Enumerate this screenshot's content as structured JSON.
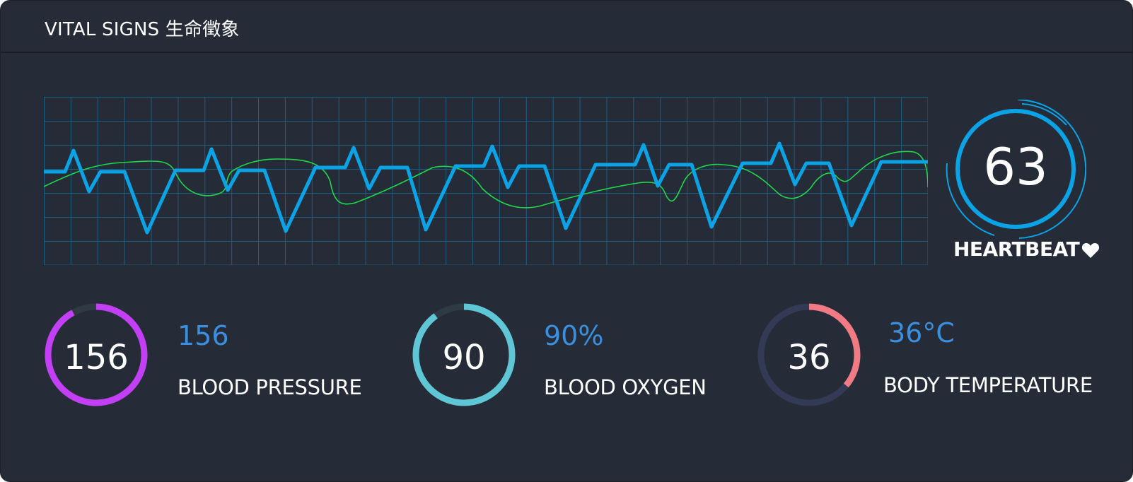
{
  "header": {
    "title": "VITAL SIGNS  生命徵象"
  },
  "heartbeat": {
    "value": "63",
    "label": "HEARTBEAT",
    "icon": "heart-icon"
  },
  "metrics": [
    {
      "gauge_value": "156",
      "value": "156",
      "label": "BLOOD PRESSURE",
      "color": "#c33ff5",
      "track": "#2f3a45",
      "fraction": 0.92
    },
    {
      "gauge_value": "90",
      "value": "90%",
      "label": "BLOOD OXYGEN",
      "color": "#5fc6d6",
      "track": "#2f3a45",
      "fraction": 0.9
    },
    {
      "gauge_value": "36",
      "value": "36°C",
      "label": "BODY TEMPERATURE",
      "color": "#f07b85",
      "track": "#323a55",
      "fraction": 0.36
    }
  ],
  "colors": {
    "background": "#262b38",
    "grid": "#1c5e80",
    "ecg": "#0aa3e6",
    "secondary_wave": "#1ed84a",
    "accent_text": "#3a8fde"
  }
}
